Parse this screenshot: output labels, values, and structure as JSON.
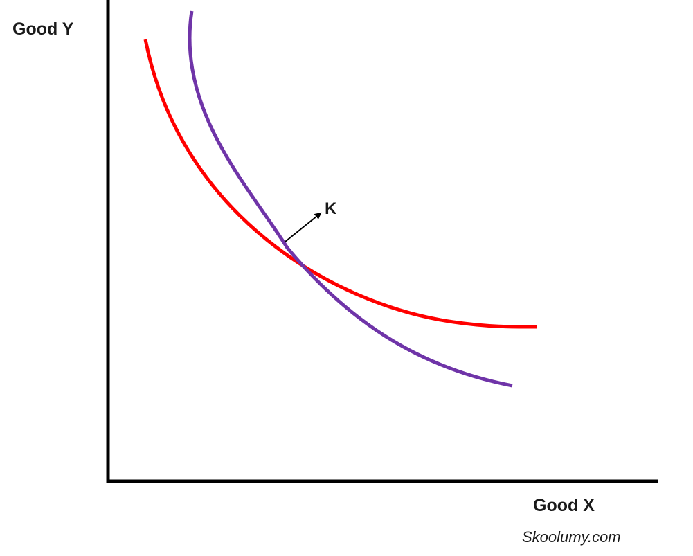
{
  "diagram": {
    "y_axis_label": "Good Y",
    "x_axis_label": "Good X",
    "point_label": "K",
    "watermark": "Skoolumy.com",
    "colors": {
      "axes": "#000000",
      "curve_red": "#ff0000",
      "curve_purple": "#6f34a8",
      "arrow": "#000000",
      "text": "#1a1a1a"
    }
  }
}
